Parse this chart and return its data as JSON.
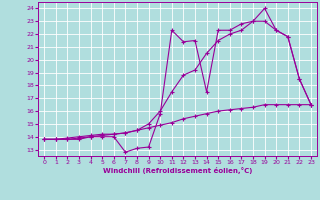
{
  "xlabel": "Windchill (Refroidissement éolien,°C)",
  "bg_color": "#b0dede",
  "line_color": "#990099",
  "grid_color": "#ffffff",
  "xlim": [
    -0.5,
    23.5
  ],
  "ylim": [
    12.5,
    24.5
  ],
  "xticks": [
    0,
    1,
    2,
    3,
    4,
    5,
    6,
    7,
    8,
    9,
    10,
    11,
    12,
    13,
    14,
    15,
    16,
    17,
    18,
    19,
    20,
    21,
    22,
    23
  ],
  "yticks": [
    13,
    14,
    15,
    16,
    17,
    18,
    19,
    20,
    21,
    22,
    23,
    24
  ],
  "line1_x": [
    0,
    1,
    2,
    3,
    4,
    5,
    6,
    7,
    8,
    9,
    10,
    11,
    12,
    13,
    14,
    15,
    16,
    17,
    18,
    19,
    20,
    21,
    22,
    23
  ],
  "line1_y": [
    13.8,
    13.8,
    13.8,
    13.8,
    14.0,
    14.0,
    14.0,
    12.8,
    13.1,
    13.2,
    15.8,
    22.3,
    21.4,
    21.5,
    17.5,
    22.3,
    22.3,
    22.8,
    23.0,
    23.0,
    22.3,
    21.8,
    18.5,
    16.5
  ],
  "line2_x": [
    0,
    1,
    2,
    3,
    4,
    5,
    6,
    7,
    8,
    9,
    10,
    11,
    12,
    13,
    14,
    15,
    16,
    17,
    18,
    19,
    20,
    21,
    22,
    23
  ],
  "line2_y": [
    13.8,
    13.8,
    13.8,
    13.9,
    14.0,
    14.1,
    14.2,
    14.3,
    14.5,
    15.0,
    16.0,
    17.5,
    18.8,
    19.2,
    20.5,
    21.5,
    22.0,
    22.3,
    23.0,
    24.0,
    22.3,
    21.8,
    18.5,
    16.5
  ],
  "line3_x": [
    0,
    1,
    2,
    3,
    4,
    5,
    6,
    7,
    8,
    9,
    10,
    11,
    12,
    13,
    14,
    15,
    16,
    17,
    18,
    19,
    20,
    21,
    22,
    23
  ],
  "line3_y": [
    13.8,
    13.8,
    13.9,
    14.0,
    14.1,
    14.2,
    14.2,
    14.3,
    14.5,
    14.7,
    14.9,
    15.1,
    15.4,
    15.6,
    15.8,
    16.0,
    16.1,
    16.2,
    16.3,
    16.5,
    16.5,
    16.5,
    16.5,
    16.5
  ]
}
